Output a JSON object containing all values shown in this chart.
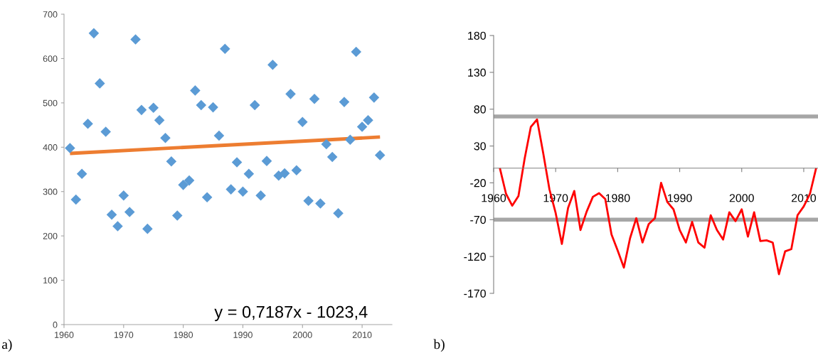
{
  "chart_data": [
    {
      "type": "scatter",
      "xlim": [
        1960,
        2015
      ],
      "xticks": [
        1960,
        1970,
        1980,
        1990,
        2000,
        2010
      ],
      "ylim": [
        0,
        700
      ],
      "yticks": [
        0,
        100,
        200,
        300,
        400,
        500,
        600,
        700
      ],
      "grid": false,
      "series": [
        {
          "type": "scatter",
          "marker": "diamond",
          "color": "#5b9bd5",
          "x": [
            1961,
            1962,
            1963,
            1964,
            1965,
            1966,
            1967,
            1968,
            1969,
            1970,
            1971,
            1972,
            1973,
            1974,
            1975,
            1976,
            1977,
            1978,
            1979,
            1980,
            1981,
            1982,
            1983,
            1984,
            1985,
            1986,
            1987,
            1988,
            1989,
            1990,
            1991,
            1992,
            1993,
            1994,
            1995,
            1996,
            1997,
            1998,
            1999,
            2000,
            2001,
            2002,
            2003,
            2004,
            2005,
            2006,
            2007,
            2008,
            2009,
            2010,
            2011,
            2012,
            2013
          ],
          "values": [
            398,
            282,
            340,
            453,
            657,
            544,
            435,
            248,
            222,
            291,
            254,
            643,
            484,
            216,
            489,
            461,
            421,
            368,
            246,
            315,
            325,
            528,
            495,
            287,
            490,
            426,
            622,
            305,
            366,
            300,
            340,
            495,
            291,
            369,
            586,
            336,
            341,
            520,
            348,
            457,
            279,
            509,
            273,
            407,
            378,
            251,
            502,
            417,
            615,
            446,
            461,
            512,
            382
          ]
        },
        {
          "type": "line",
          "marker": "none",
          "color": "#ed7d31",
          "x": [
            1961,
            2013
          ],
          "values": [
            386,
            423
          ]
        }
      ],
      "annotations": [
        "y = 0,7187x - 1023,4",
        "a)"
      ]
    },
    {
      "type": "line",
      "xlim": [
        1960,
        2012.3
      ],
      "xticks": [
        1960,
        1970,
        1980,
        1990,
        2000,
        2010
      ],
      "ylim": [
        -170,
        180
      ],
      "yticks": [
        180,
        130,
        80,
        30,
        -20,
        -70,
        -120,
        -170
      ],
      "grid": false,
      "marker": "none",
      "series": [
        {
          "color": "#ff0000",
          "x": [
            1961,
            1962,
            1963,
            1964,
            1965,
            1966,
            1967,
            1968,
            1969,
            1970,
            1971,
            1972,
            1973,
            1974,
            1975,
            1976,
            1977,
            1978,
            1979,
            1980,
            1981,
            1982,
            1983,
            1984,
            1985,
            1986,
            1987,
            1988,
            1989,
            1990,
            1991,
            1992,
            1993,
            1994,
            1995,
            1996,
            1997,
            1998,
            1999,
            2000,
            2001,
            2002,
            2003,
            2004,
            2005,
            2006,
            2007,
            2008,
            2009,
            2010,
            2011,
            2012
          ],
          "values": [
            0,
            -35,
            -51,
            -38,
            13,
            56,
            66,
            20,
            -29,
            -61,
            -103,
            -54,
            -31,
            -84,
            -59,
            -39,
            -34,
            -42,
            -90,
            -112,
            -135,
            -95,
            -68,
            -101,
            -76,
            -68,
            -20,
            -46,
            -56,
            -84,
            -101,
            -73,
            -101,
            -108,
            -64,
            -84,
            -97,
            -60,
            -72,
            -56,
            -93,
            -60,
            -99,
            -98,
            -101,
            -144,
            -113,
            -110,
            -64,
            -52,
            -35,
            0
          ]
        }
      ],
      "ref_lines": [
        {
          "axis": "y",
          "value": 70,
          "color": "#a6a6a6"
        },
        {
          "axis": "y",
          "value": -70,
          "color": "#a6a6a6"
        }
      ],
      "annotations": [
        "b)"
      ]
    }
  ]
}
